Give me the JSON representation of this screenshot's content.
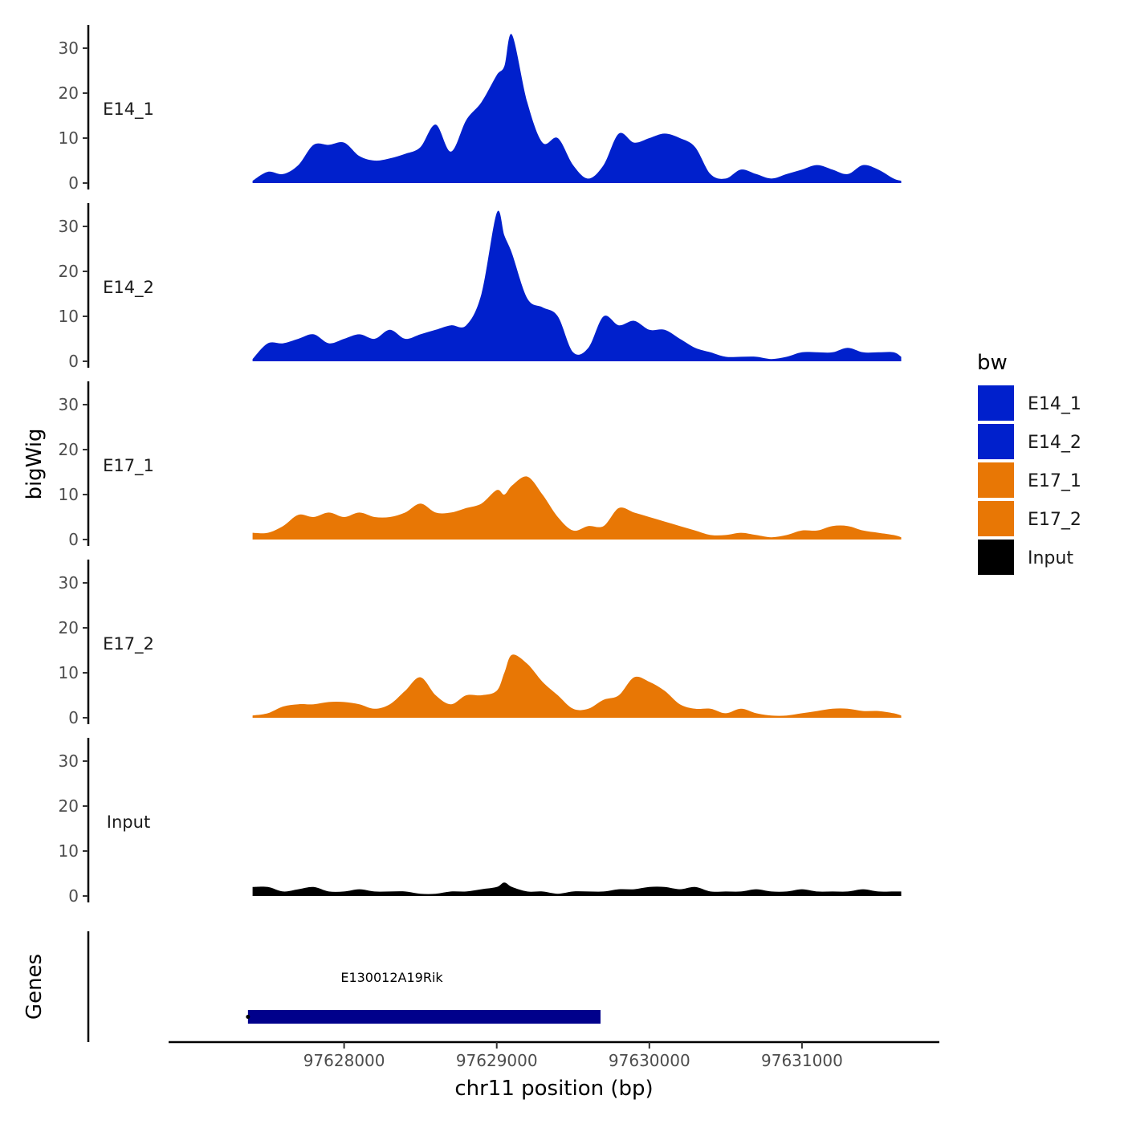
{
  "chart_data": {
    "type": "area",
    "chromosome": "chr11",
    "xlabel": "chr11 position (bp)",
    "ylabel": "bigWig",
    "genes_label": "Genes",
    "xlim": [
      97626850,
      97631900
    ],
    "ylim": [
      0,
      35
    ],
    "x_ticks": [
      97628000,
      97629000,
      97630000,
      97631000
    ],
    "x_tick_labels": [
      "97628000",
      "97629000",
      "97630000",
      "97631000"
    ],
    "y_ticks": [
      0,
      10,
      20,
      30
    ],
    "y_tick_labels": [
      "0",
      "10",
      "20",
      "30"
    ],
    "legend": {
      "title": "bw",
      "entries": [
        {
          "label": "E14_1",
          "color": "#0020cc"
        },
        {
          "label": "E14_2",
          "color": "#0020cc"
        },
        {
          "label": "E17_1",
          "color": "#e87705"
        },
        {
          "label": "E17_2",
          "color": "#e87705"
        },
        {
          "label": "Input",
          "color": "#000000"
        }
      ]
    },
    "x": [
      97627400,
      97627500,
      97627600,
      97627700,
      97627800,
      97627900,
      97628000,
      97628100,
      97628200,
      97628300,
      97628400,
      97628500,
      97628600,
      97628700,
      97628800,
      97628900,
      97629000,
      97629050,
      97629100,
      97629200,
      97629300,
      97629400,
      97629500,
      97629600,
      97629700,
      97629800,
      97629900,
      97630000,
      97630100,
      97630200,
      97630300,
      97630400,
      97630500,
      97630600,
      97630700,
      97630800,
      97630900,
      97631000,
      97631100,
      97631200,
      97631300,
      97631400,
      97631500,
      97631600,
      97631650
    ],
    "series": [
      {
        "name": "E14_1",
        "color": "#0020cc",
        "values": [
          0.5,
          2.5,
          2,
          4,
          8.5,
          8.5,
          9,
          6,
          5,
          5.5,
          6.5,
          8,
          13,
          7,
          14,
          18,
          24,
          26,
          33,
          18,
          9,
          10,
          4,
          1,
          4,
          11,
          9,
          10,
          11,
          10,
          8,
          2,
          1,
          3,
          2,
          1,
          2,
          3,
          4,
          3,
          2,
          4,
          3,
          1,
          0.5
        ]
      },
      {
        "name": "E14_2",
        "color": "#0020cc",
        "values": [
          0.5,
          4,
          4,
          5,
          6,
          4,
          5,
          6,
          5,
          7,
          5,
          6,
          7,
          8,
          8,
          15,
          33,
          28,
          24,
          14,
          12,
          10,
          2,
          3,
          10,
          8,
          9,
          7,
          7,
          5,
          3,
          2,
          1,
          1,
          1,
          0.5,
          1,
          2,
          2,
          2,
          3,
          2,
          2,
          2,
          1
        ]
      },
      {
        "name": "E17_1",
        "color": "#e87705",
        "values": [
          1.5,
          1.5,
          3,
          5.5,
          5,
          6,
          5,
          6,
          5,
          5,
          6,
          8,
          6,
          6,
          7,
          8,
          11,
          10,
          12,
          14,
          10,
          5,
          2,
          3,
          3,
          7,
          6,
          5,
          4,
          3,
          2,
          1,
          1,
          1.5,
          1,
          0.5,
          1,
          2,
          2,
          3,
          3,
          2,
          1.5,
          1,
          0.5
        ]
      },
      {
        "name": "E17_2",
        "color": "#e87705",
        "values": [
          0.5,
          1,
          2.5,
          3,
          3,
          3.5,
          3.5,
          3,
          2,
          3,
          6,
          9,
          5,
          3,
          5,
          5,
          6,
          10,
          14,
          12,
          8,
          5,
          2,
          2,
          4,
          5,
          9,
          8,
          6,
          3,
          2,
          2,
          1,
          2,
          1,
          0.5,
          0.5,
          1,
          1.5,
          2,
          2,
          1.5,
          1.5,
          1,
          0.5
        ]
      },
      {
        "name": "Input",
        "color": "#000000",
        "values": [
          2,
          2,
          1,
          1.5,
          2,
          1,
          1,
          1.5,
          1,
          1,
          1,
          0.5,
          0.5,
          1,
          1,
          1.5,
          2,
          3,
          2,
          1,
          1,
          0.5,
          1,
          1,
          1,
          1.5,
          1.5,
          2,
          2,
          1.5,
          2,
          1,
          1,
          1,
          1.5,
          1,
          1,
          1.5,
          1,
          1,
          1,
          1.5,
          1,
          1,
          1
        ]
      }
    ],
    "genes": [
      {
        "name": "E130012A19Rik",
        "start": 97627370,
        "end": 97629680,
        "color": "#00008b"
      }
    ]
  }
}
